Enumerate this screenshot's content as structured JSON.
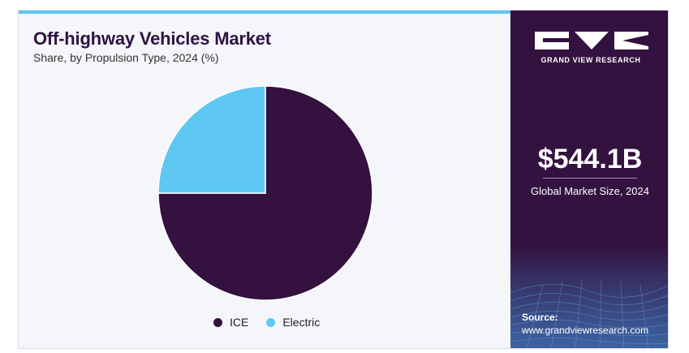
{
  "header": {
    "title": "Off-highway Vehicles Market",
    "subtitle": "Share, by Propulsion Type, 2024 (%)"
  },
  "chart_data": {
    "type": "pie",
    "title": "Off-highway Vehicles Market",
    "subtitle": "Share, by Propulsion Type, 2024 (%)",
    "slices": [
      {
        "label": "ICE",
        "value": 75,
        "color": "#35113f"
      },
      {
        "label": "Electric",
        "value": 25,
        "color": "#5ec8f2"
      }
    ],
    "legend_position": "bottom"
  },
  "sidebar": {
    "brand": "GRAND VIEW RESEARCH",
    "market_value": "$544.1B",
    "market_label": "Global Market Size, 2024",
    "source_label": "Source:",
    "source_url": "www.grandviewresearch.com",
    "background_color": "#33123f"
  }
}
